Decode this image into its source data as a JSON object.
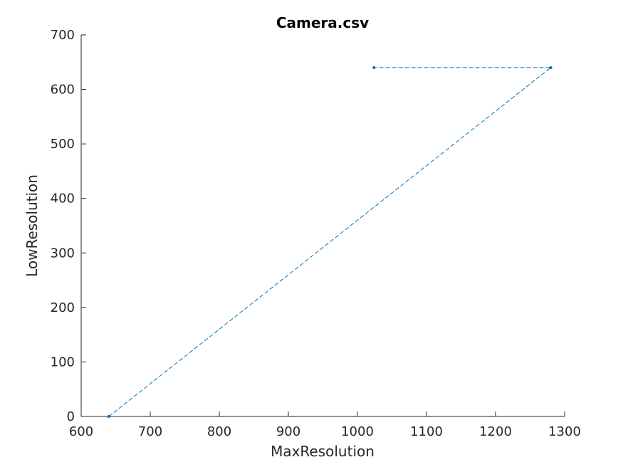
{
  "chart_data": {
    "type": "line",
    "title": "Camera.csv",
    "xlabel": "MaxResolution",
    "ylabel": "LowResolution",
    "xlim": [
      600,
      1300
    ],
    "ylim": [
      0,
      700
    ],
    "xticks": [
      600,
      700,
      800,
      900,
      1000,
      1100,
      1200,
      1300
    ],
    "yticks": [
      0,
      100,
      200,
      300,
      400,
      500,
      600,
      700
    ],
    "xtick_labels": [
      "600",
      "700",
      "800",
      "900",
      "1000",
      "1100",
      "1200",
      "1300"
    ],
    "ytick_labels": [
      "0",
      "100",
      "200",
      "300",
      "400",
      "500",
      "600",
      "700"
    ],
    "grid": false,
    "line_style": "dashed",
    "series": [
      {
        "x": [
          640,
          1280,
          1024
        ],
        "y": [
          0,
          640,
          640
        ],
        "color": "#0072BD"
      }
    ]
  }
}
